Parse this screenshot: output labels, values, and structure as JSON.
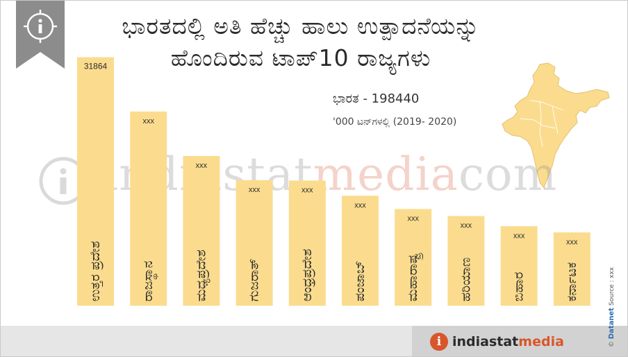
{
  "title": {
    "line1": "ಭಾರತದಲ್ಲಿ ಅತಿ ಹೆಚ್ಚು ಹಾಲು ಉತ್ಪಾದನೆಯನ್ನು",
    "line2": "ಹೊಂದಿರುವ ಟಾಪ್10  ರಾಜ್ಯಗಳು"
  },
  "total_label": "ಭಾರತ",
  "total_value": "198440",
  "unit_note": "'000 ಟನ್‌ಗಳಲ್ಲಿ (2019- 2020)",
  "watermark": {
    "main": "indiastat",
    "accent": "media",
    "tail": "com"
  },
  "brand": {
    "part1": "indiastat",
    "part2": "media"
  },
  "source": {
    "company": "Datanet",
    "text": "Source : xxx"
  },
  "colors": {
    "bar": "#fbdc8e",
    "map": "#fbdc8e",
    "accent": "#d9562a",
    "ribbon": "#8c8c8c"
  },
  "icons": {
    "ribbon": "info-icon",
    "logo": "info-icon",
    "copyright": "copyright-icon"
  },
  "chart_data": {
    "type": "bar",
    "title": "ಭಾರತದಲ್ಲಿ ಅತಿ ಹೆಚ್ಚು ಹಾಲು ಉತ್ಪಾದನೆಯನ್ನು ಹೊಂದಿರುವ ಟಾಪ್10  ರಾಜ್ಯಗಳು",
    "categories": [
      "ಉತ್ತರ ಪ್ರದೇಶ",
      "ರಾಜಸ್ಥಾನ",
      "ಮಧ್ಯಪ್ರದೇಶ",
      "ಗುಜರಾತ್",
      "ಆಂಧ್ರಪ್ರದೇಶ",
      "ಪಂಜಾಬ್",
      "ಮಹಾರಾಷ್ಟ್ರ",
      "ಹರಿಯಾಣ",
      "ಬಿಹಾರ",
      "ಕರ್ನಾಟಕ"
    ],
    "values": [
      31864,
      24900,
      19200,
      16100,
      16050,
      14100,
      12400,
      11500,
      10200,
      9400
    ],
    "data_labels": [
      "31864",
      "xxx",
      "xxx",
      "xxx",
      "xxx",
      "xxx",
      "xxx",
      "xxx",
      "xxx",
      "xxx"
    ],
    "ylim": [
      0,
      32000
    ],
    "xlabel": "",
    "ylabel": "",
    "grid": false,
    "legend": "none"
  }
}
